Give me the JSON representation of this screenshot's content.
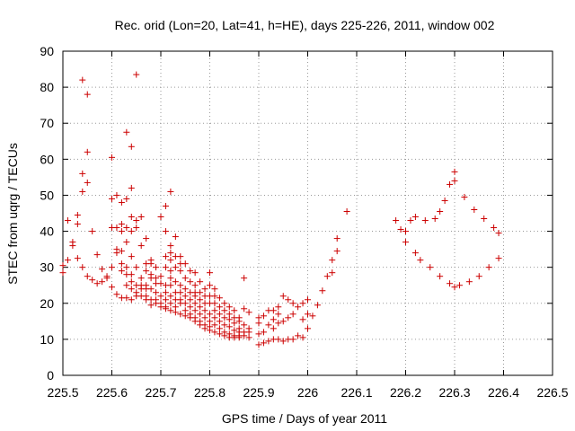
{
  "chart_data": {
    "type": "scatter",
    "title": "Rec. orid (Lon=20, Lat=41, h=HE), days 225-226, 2011, window 002",
    "xlabel": "GPS time / Days of year 2011",
    "ylabel": "STEC from uqrg / TECUs",
    "xlim": [
      225.5,
      226.5
    ],
    "ylim": [
      0,
      90
    ],
    "xticks": [
      225.5,
      225.6,
      225.7,
      225.8,
      225.9,
      226,
      226.1,
      226.2,
      226.3,
      226.4,
      226.5
    ],
    "xtick_labels": [
      "225.5",
      "225.6",
      "225.7",
      "225.8",
      "225.9",
      "226",
      "226.1",
      "226.2",
      "226.3",
      "226.4",
      "226.5"
    ],
    "yticks": [
      0,
      10,
      20,
      30,
      40,
      50,
      60,
      70,
      80,
      90
    ],
    "ytick_labels": [
      "0",
      "10",
      "20",
      "30",
      "40",
      "50",
      "60",
      "70",
      "80",
      "90"
    ],
    "grid": true,
    "marker": "+",
    "color": "#cc0000",
    "series": [
      {
        "name": "STEC",
        "points": [
          [
            225.5,
            28.5
          ],
          [
            225.5,
            30.5
          ],
          [
            225.51,
            43
          ],
          [
            225.51,
            32
          ],
          [
            225.52,
            37
          ],
          [
            225.52,
            36
          ],
          [
            225.53,
            44.5
          ],
          [
            225.53,
            42
          ],
          [
            225.53,
            32.5
          ],
          [
            225.54,
            82
          ],
          [
            225.54,
            56
          ],
          [
            225.54,
            51
          ],
          [
            225.54,
            30
          ],
          [
            225.55,
            78
          ],
          [
            225.55,
            62
          ],
          [
            225.55,
            53.5
          ],
          [
            225.55,
            27.5
          ],
          [
            225.56,
            40
          ],
          [
            225.56,
            26.5
          ],
          [
            225.57,
            33.5
          ],
          [
            225.57,
            25.5
          ],
          [
            225.58,
            29.5
          ],
          [
            225.58,
            26
          ],
          [
            225.59,
            27.5
          ],
          [
            225.59,
            27
          ],
          [
            225.6,
            60.5
          ],
          [
            225.6,
            49
          ],
          [
            225.6,
            41
          ],
          [
            225.6,
            30
          ],
          [
            225.6,
            24.5
          ],
          [
            225.61,
            50
          ],
          [
            225.61,
            41
          ],
          [
            225.61,
            35
          ],
          [
            225.61,
            34
          ],
          [
            225.61,
            22.5
          ],
          [
            225.62,
            48
          ],
          [
            225.62,
            42
          ],
          [
            225.62,
            40
          ],
          [
            225.62,
            34.5
          ],
          [
            225.62,
            31
          ],
          [
            225.62,
            29
          ],
          [
            225.62,
            21.5
          ],
          [
            225.63,
            67.5
          ],
          [
            225.63,
            49
          ],
          [
            225.63,
            41
          ],
          [
            225.63,
            37
          ],
          [
            225.63,
            30
          ],
          [
            225.63,
            28
          ],
          [
            225.63,
            25
          ],
          [
            225.63,
            21.5
          ],
          [
            225.64,
            63.5
          ],
          [
            225.64,
            52
          ],
          [
            225.64,
            44
          ],
          [
            225.64,
            40
          ],
          [
            225.64,
            33
          ],
          [
            225.64,
            28
          ],
          [
            225.64,
            26
          ],
          [
            225.64,
            24
          ],
          [
            225.64,
            21
          ],
          [
            225.65,
            83.5
          ],
          [
            225.65,
            43
          ],
          [
            225.65,
            41
          ],
          [
            225.65,
            30
          ],
          [
            225.65,
            25
          ],
          [
            225.65,
            23
          ],
          [
            225.65,
            22
          ],
          [
            225.66,
            44
          ],
          [
            225.66,
            36
          ],
          [
            225.66,
            27
          ],
          [
            225.66,
            25
          ],
          [
            225.66,
            24
          ],
          [
            225.66,
            22
          ],
          [
            225.67,
            38
          ],
          [
            225.67,
            31
          ],
          [
            225.67,
            29
          ],
          [
            225.67,
            25
          ],
          [
            225.67,
            24
          ],
          [
            225.67,
            22
          ],
          [
            225.67,
            21
          ],
          [
            225.68,
            32
          ],
          [
            225.68,
            31
          ],
          [
            225.68,
            28
          ],
          [
            225.68,
            27
          ],
          [
            225.68,
            24
          ],
          [
            225.68,
            21
          ],
          [
            225.68,
            19.5
          ],
          [
            225.69,
            30
          ],
          [
            225.69,
            27
          ],
          [
            225.69,
            25.5
          ],
          [
            225.69,
            23
          ],
          [
            225.69,
            21
          ],
          [
            225.69,
            20
          ],
          [
            225.7,
            44
          ],
          [
            225.7,
            27.5
          ],
          [
            225.7,
            25.5
          ],
          [
            225.7,
            22
          ],
          [
            225.7,
            20
          ],
          [
            225.7,
            19
          ],
          [
            225.71,
            47
          ],
          [
            225.71,
            40
          ],
          [
            225.71,
            33
          ],
          [
            225.71,
            30
          ],
          [
            225.71,
            25
          ],
          [
            225.71,
            23
          ],
          [
            225.71,
            21
          ],
          [
            225.71,
            19
          ],
          [
            225.71,
            18.5
          ],
          [
            225.72,
            51
          ],
          [
            225.72,
            36
          ],
          [
            225.72,
            34
          ],
          [
            225.72,
            32
          ],
          [
            225.72,
            29
          ],
          [
            225.72,
            27
          ],
          [
            225.72,
            25
          ],
          [
            225.72,
            22
          ],
          [
            225.72,
            20
          ],
          [
            225.72,
            18
          ],
          [
            225.73,
            38.5
          ],
          [
            225.73,
            33
          ],
          [
            225.73,
            30
          ],
          [
            225.73,
            26
          ],
          [
            225.73,
            23
          ],
          [
            225.73,
            21
          ],
          [
            225.73,
            19
          ],
          [
            225.73,
            17.5
          ],
          [
            225.74,
            33
          ],
          [
            225.74,
            31
          ],
          [
            225.74,
            29
          ],
          [
            225.74,
            25
          ],
          [
            225.74,
            23
          ],
          [
            225.74,
            21
          ],
          [
            225.74,
            20
          ],
          [
            225.74,
            17
          ],
          [
            225.75,
            31
          ],
          [
            225.75,
            27
          ],
          [
            225.75,
            24
          ],
          [
            225.75,
            22
          ],
          [
            225.75,
            20
          ],
          [
            225.75,
            18
          ],
          [
            225.75,
            16.5
          ],
          [
            225.76,
            29
          ],
          [
            225.76,
            26
          ],
          [
            225.76,
            23
          ],
          [
            225.76,
            21
          ],
          [
            225.76,
            19
          ],
          [
            225.76,
            17
          ],
          [
            225.76,
            16
          ],
          [
            225.77,
            28.5
          ],
          [
            225.77,
            25
          ],
          [
            225.77,
            23
          ],
          [
            225.77,
            22
          ],
          [
            225.77,
            20
          ],
          [
            225.77,
            18
          ],
          [
            225.77,
            16
          ],
          [
            225.77,
            15
          ],
          [
            225.78,
            26
          ],
          [
            225.78,
            23
          ],
          [
            225.78,
            21
          ],
          [
            225.78,
            19
          ],
          [
            225.78,
            17
          ],
          [
            225.78,
            15
          ],
          [
            225.78,
            14
          ],
          [
            225.79,
            24
          ],
          [
            225.79,
            22
          ],
          [
            225.79,
            20
          ],
          [
            225.79,
            18
          ],
          [
            225.79,
            16
          ],
          [
            225.79,
            14
          ],
          [
            225.79,
            13
          ],
          [
            225.8,
            28.5
          ],
          [
            225.8,
            25
          ],
          [
            225.8,
            22
          ],
          [
            225.8,
            20
          ],
          [
            225.8,
            17
          ],
          [
            225.8,
            15
          ],
          [
            225.8,
            13.5
          ],
          [
            225.8,
            12.5
          ],
          [
            225.81,
            24
          ],
          [
            225.81,
            22
          ],
          [
            225.81,
            20
          ],
          [
            225.81,
            18
          ],
          [
            225.81,
            16
          ],
          [
            225.81,
            14
          ],
          [
            225.81,
            12
          ],
          [
            225.82,
            21.5
          ],
          [
            225.82,
            19
          ],
          [
            225.82,
            17
          ],
          [
            225.82,
            15
          ],
          [
            225.82,
            13
          ],
          [
            225.82,
            11.5
          ],
          [
            225.83,
            20
          ],
          [
            225.83,
            18
          ],
          [
            225.83,
            16
          ],
          [
            225.83,
            14
          ],
          [
            225.83,
            12
          ],
          [
            225.83,
            11
          ],
          [
            225.84,
            19
          ],
          [
            225.84,
            17
          ],
          [
            225.84,
            15.5
          ],
          [
            225.84,
            13.5
          ],
          [
            225.84,
            11.5
          ],
          [
            225.84,
            10.5
          ],
          [
            225.85,
            18
          ],
          [
            225.85,
            16
          ],
          [
            225.85,
            14.5
          ],
          [
            225.85,
            12.5
          ],
          [
            225.85,
            11
          ],
          [
            225.85,
            10.5
          ],
          [
            225.86,
            16
          ],
          [
            225.86,
            15
          ],
          [
            225.86,
            13
          ],
          [
            225.86,
            12
          ],
          [
            225.86,
            11
          ],
          [
            225.86,
            10.5
          ],
          [
            225.87,
            27
          ],
          [
            225.87,
            18.5
          ],
          [
            225.87,
            14
          ],
          [
            225.87,
            12
          ],
          [
            225.87,
            11
          ],
          [
            225.88,
            17.5
          ],
          [
            225.88,
            13
          ],
          [
            225.88,
            12
          ],
          [
            225.88,
            10.5
          ],
          [
            225.9,
            8.5
          ],
          [
            225.9,
            11.5
          ],
          [
            225.9,
            14.5
          ],
          [
            225.9,
            16
          ],
          [
            225.91,
            9
          ],
          [
            225.91,
            12
          ],
          [
            225.91,
            16.5
          ],
          [
            225.92,
            9.5
          ],
          [
            225.92,
            14
          ],
          [
            225.92,
            18
          ],
          [
            225.93,
            10
          ],
          [
            225.93,
            13
          ],
          [
            225.93,
            15.5
          ],
          [
            225.93,
            18
          ],
          [
            225.94,
            10
          ],
          [
            225.94,
            14.5
          ],
          [
            225.94,
            17
          ],
          [
            225.94,
            19
          ],
          [
            225.95,
            9.5
          ],
          [
            225.95,
            15
          ],
          [
            225.95,
            22
          ],
          [
            225.96,
            10
          ],
          [
            225.96,
            16
          ],
          [
            225.96,
            21
          ],
          [
            225.97,
            10
          ],
          [
            225.97,
            17
          ],
          [
            225.97,
            20
          ],
          [
            225.98,
            11
          ],
          [
            225.98,
            19
          ],
          [
            225.99,
            10.5
          ],
          [
            225.99,
            15.5
          ],
          [
            225.99,
            20
          ],
          [
            226,
            13
          ],
          [
            226,
            17
          ],
          [
            226,
            21
          ],
          [
            226.01,
            16.5
          ],
          [
            226.02,
            19.5
          ],
          [
            226.03,
            23.5
          ],
          [
            226.04,
            27.5
          ],
          [
            226.05,
            28.5
          ],
          [
            226.05,
            32
          ],
          [
            226.06,
            34.5
          ],
          [
            226.06,
            38
          ],
          [
            226.08,
            45.5
          ],
          [
            226.18,
            43
          ],
          [
            226.19,
            40.5
          ],
          [
            226.2,
            40
          ],
          [
            226.2,
            37
          ],
          [
            226.21,
            43
          ],
          [
            226.22,
            44
          ],
          [
            226.22,
            34
          ],
          [
            226.23,
            32
          ],
          [
            226.24,
            43
          ],
          [
            226.25,
            30
          ],
          [
            226.26,
            43.5
          ],
          [
            226.27,
            45.5
          ],
          [
            226.27,
            27.5
          ],
          [
            226.28,
            48.5
          ],
          [
            226.29,
            53
          ],
          [
            226.29,
            25.5
          ],
          [
            226.3,
            54
          ],
          [
            226.3,
            56.5
          ],
          [
            226.3,
            24.5
          ],
          [
            226.31,
            25
          ],
          [
            226.32,
            49.5
          ],
          [
            226.33,
            26
          ],
          [
            226.34,
            46
          ],
          [
            226.35,
            27.5
          ],
          [
            226.36,
            43.5
          ],
          [
            226.37,
            30
          ],
          [
            226.38,
            41
          ],
          [
            226.39,
            32.5
          ],
          [
            226.39,
            39.5
          ]
        ]
      }
    ]
  }
}
